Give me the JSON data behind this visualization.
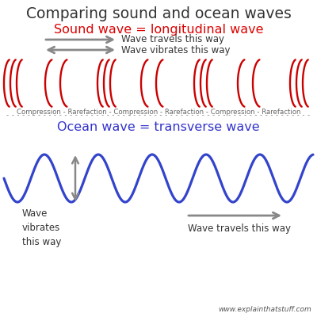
{
  "title": "Comparing sound and ocean waves",
  "title_fontsize": 13.5,
  "sound_label": "Sound wave = longitudinal wave",
  "sound_label_color": "#dd0000",
  "sound_label_fontsize": 11.5,
  "ocean_label": "Ocean wave = transverse wave",
  "ocean_label_color": "#3333cc",
  "ocean_label_fontsize": 11.5,
  "arrow_color": "#888888",
  "text_color": "#333333",
  "wave_red": "#cc0000",
  "wave_blue": "#3344cc",
  "compression_label": "Compression - Rarefaction - Compression - Rarefaction - Compression - Rarefaction",
  "website": "www.explainthatstuff.com",
  "bg_color": "#ffffff",
  "travel_arrow_text": "Wave travels this way",
  "vibrates_arrow_text": "Wave vibrates this way",
  "wave_vibrates_text": "Wave\nvibrates\nthis way",
  "wave_travels_text": "Wave travels this way"
}
